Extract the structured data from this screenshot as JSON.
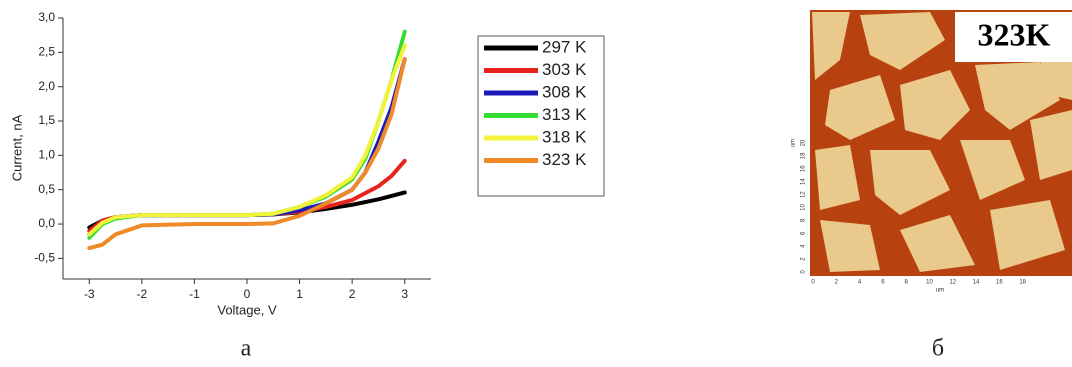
{
  "chart_data": {
    "type": "line",
    "x_label": "Voltage, V",
    "y_label": "Current, nA",
    "x": [
      -3,
      -2.75,
      -2.5,
      -2,
      -1,
      0,
      0.5,
      1,
      1.5,
      2,
      2.25,
      2.5,
      2.75,
      3
    ],
    "series": [
      {
        "name": "297 K",
        "color": "#000000",
        "values": [
          -0.05,
          0.05,
          0.1,
          0.13,
          0.13,
          0.13,
          0.14,
          0.17,
          0.22,
          0.28,
          0.32,
          0.36,
          0.41,
          0.46
        ]
      },
      {
        "name": "303 K",
        "color": "#e8231e",
        "values": [
          -0.1,
          0.05,
          0.1,
          0.13,
          0.13,
          0.13,
          0.14,
          0.18,
          0.25,
          0.35,
          0.45,
          0.55,
          0.7,
          0.92
        ]
      },
      {
        "name": "308 K",
        "color": "#1a1ab8",
        "values": [
          -0.15,
          0.02,
          0.1,
          0.13,
          0.13,
          0.13,
          0.14,
          0.2,
          0.3,
          0.5,
          0.75,
          1.2,
          1.7,
          2.4
        ]
      },
      {
        "name": "313 K",
        "color": "#33dd33",
        "values": [
          -0.2,
          0.0,
          0.08,
          0.13,
          0.13,
          0.13,
          0.15,
          0.25,
          0.4,
          0.65,
          0.95,
          1.5,
          2.1,
          2.8
        ]
      },
      {
        "name": "318 K",
        "color": "#f2f23a",
        "values": [
          -0.15,
          0.02,
          0.1,
          0.13,
          0.13,
          0.13,
          0.15,
          0.25,
          0.42,
          0.68,
          1.0,
          1.5,
          2.1,
          2.6
        ]
      },
      {
        "name": "323 K",
        "color": "#f08a28",
        "values": [
          -0.35,
          -0.3,
          -0.15,
          -0.02,
          0,
          0,
          0.01,
          0.12,
          0.3,
          0.5,
          0.75,
          1.1,
          1.6,
          2.4
        ]
      }
    ],
    "xlim": [
      -3.5,
      3.5
    ],
    "xticks": [
      -3,
      -2,
      -1,
      0,
      1,
      2,
      3
    ],
    "ylim": [
      -0.8,
      3.0
    ],
    "yticks": [
      {
        "value": -0.5,
        "label": "-0,5"
      },
      {
        "value": 0,
        "label": "0,0"
      },
      {
        "value": 0.5,
        "label": "0,5"
      },
      {
        "value": 1,
        "label": "1,0"
      },
      {
        "value": 1.5,
        "label": "1,5"
      },
      {
        "value": 2,
        "label": "2,0"
      },
      {
        "value": 2.5,
        "label": "2,5"
      },
      {
        "value": 3,
        "label": "3,0"
      }
    ],
    "grid": false
  },
  "image_panel": {
    "label": "323K",
    "x_label": "um",
    "y_label": "um",
    "x_ticks": [
      0,
      2,
      4,
      6,
      8,
      10,
      12,
      14,
      16,
      18
    ],
    "y_ticks": [
      0,
      2,
      4,
      6,
      8,
      10,
      12,
      14,
      16,
      18,
      20
    ]
  },
  "captions": [
    "а",
    "б"
  ]
}
